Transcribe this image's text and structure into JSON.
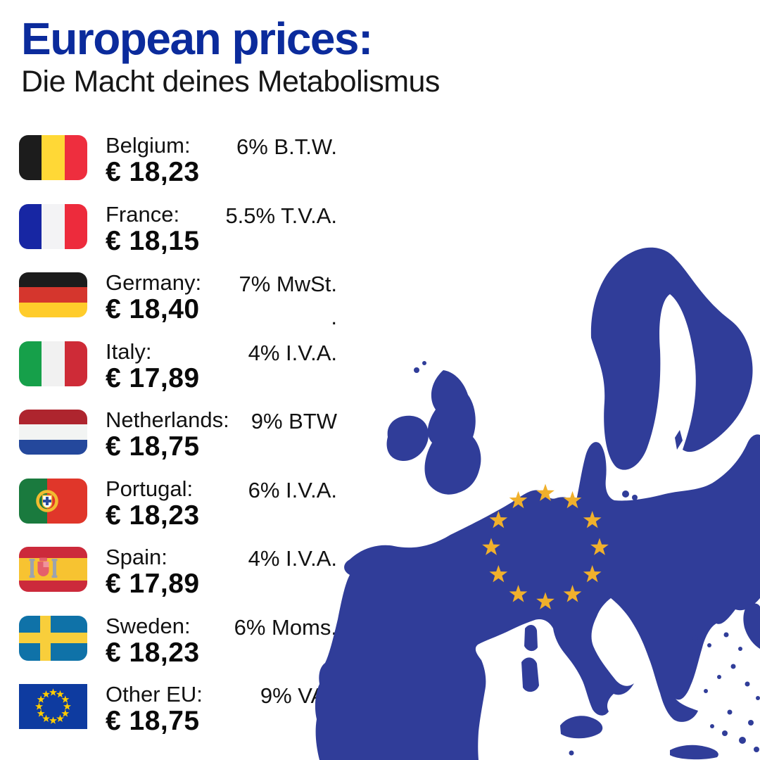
{
  "page": {
    "background": "#ffffff"
  },
  "header": {
    "title": "European prices:",
    "title_color": "#0b2b9c",
    "subtitle": "Die Macht deines Metabolismus",
    "subtitle_color": "#161616"
  },
  "price_list": {
    "rows": [
      {
        "country": "Belgium:",
        "price": "€ 18,23",
        "vat": "6% B.T.W.",
        "flag": "belgium"
      },
      {
        "country": "France:",
        "price": "€ 18,15",
        "vat": "5.5% T.V.A.",
        "flag": "france"
      },
      {
        "country": "Germany:",
        "price": "€ 18,40",
        "vat": "7% MwSt.\n.",
        "flag": "germany"
      },
      {
        "country": "Italy:",
        "price": "€ 17,89",
        "vat": "4% I.V.A.",
        "flag": "italy"
      },
      {
        "country": "Netherlands:",
        "price": "€ 18,75",
        "vat": "9% BTW",
        "flag": "netherlands"
      },
      {
        "country": "Portugal:",
        "price": "€ 18,23",
        "vat": "6% I.V.A.",
        "flag": "portugal"
      },
      {
        "country": "Spain:",
        "price": "€ 17,89",
        "vat": "4% I.V.A.",
        "flag": "spain"
      },
      {
        "country": "Sweden:",
        "price": "€ 18,23",
        "vat": "6% Moms.",
        "flag": "sweden"
      },
      {
        "country": "Other EU:",
        "price": "€ 18,75",
        "vat": "9% VAT",
        "flag": "eu"
      }
    ],
    "text_color": "#121212"
  },
  "flags": {
    "belgium": {
      "type": "v3",
      "colors": [
        "#1c1c1c",
        "#FFD836",
        "#EE2E3E"
      ]
    },
    "france": {
      "type": "v3",
      "colors": [
        "#1726A3",
        "#F3F3F5",
        "#ED2B3C"
      ]
    },
    "germany": {
      "type": "h3",
      "colors": [
        "#1c1c1c",
        "#D5362D",
        "#FFCC2B"
      ]
    },
    "italy": {
      "type": "v3",
      "colors": [
        "#16A04A",
        "#F1F1F1",
        "#CE2B37"
      ]
    },
    "netherlands": {
      "type": "h3",
      "colors": [
        "#AE252E",
        "#F2F4F3",
        "#24489C"
      ]
    },
    "portugal": {
      "type": "pt",
      "colors": [
        "#1A7A3E",
        "#E0362A",
        "#F2BC30",
        "#ffffff",
        "#2C4C9C"
      ]
    },
    "spain": {
      "type": "es",
      "colors": [
        "#CC2A3B",
        "#F7C331",
        "#9CA3AF",
        "#E4606C",
        "#F0939C"
      ]
    },
    "sweden": {
      "type": "cross",
      "colors": [
        "#0F72A8",
        "#F8CE3B"
      ]
    },
    "eu": {
      "type": "eu",
      "colors": [
        "#0E3BA0",
        "#FFCC00"
      ]
    }
  },
  "map": {
    "label": "europe-map",
    "land_color": "#303D99",
    "star_color": "#F0B02C",
    "star_count": 12
  }
}
